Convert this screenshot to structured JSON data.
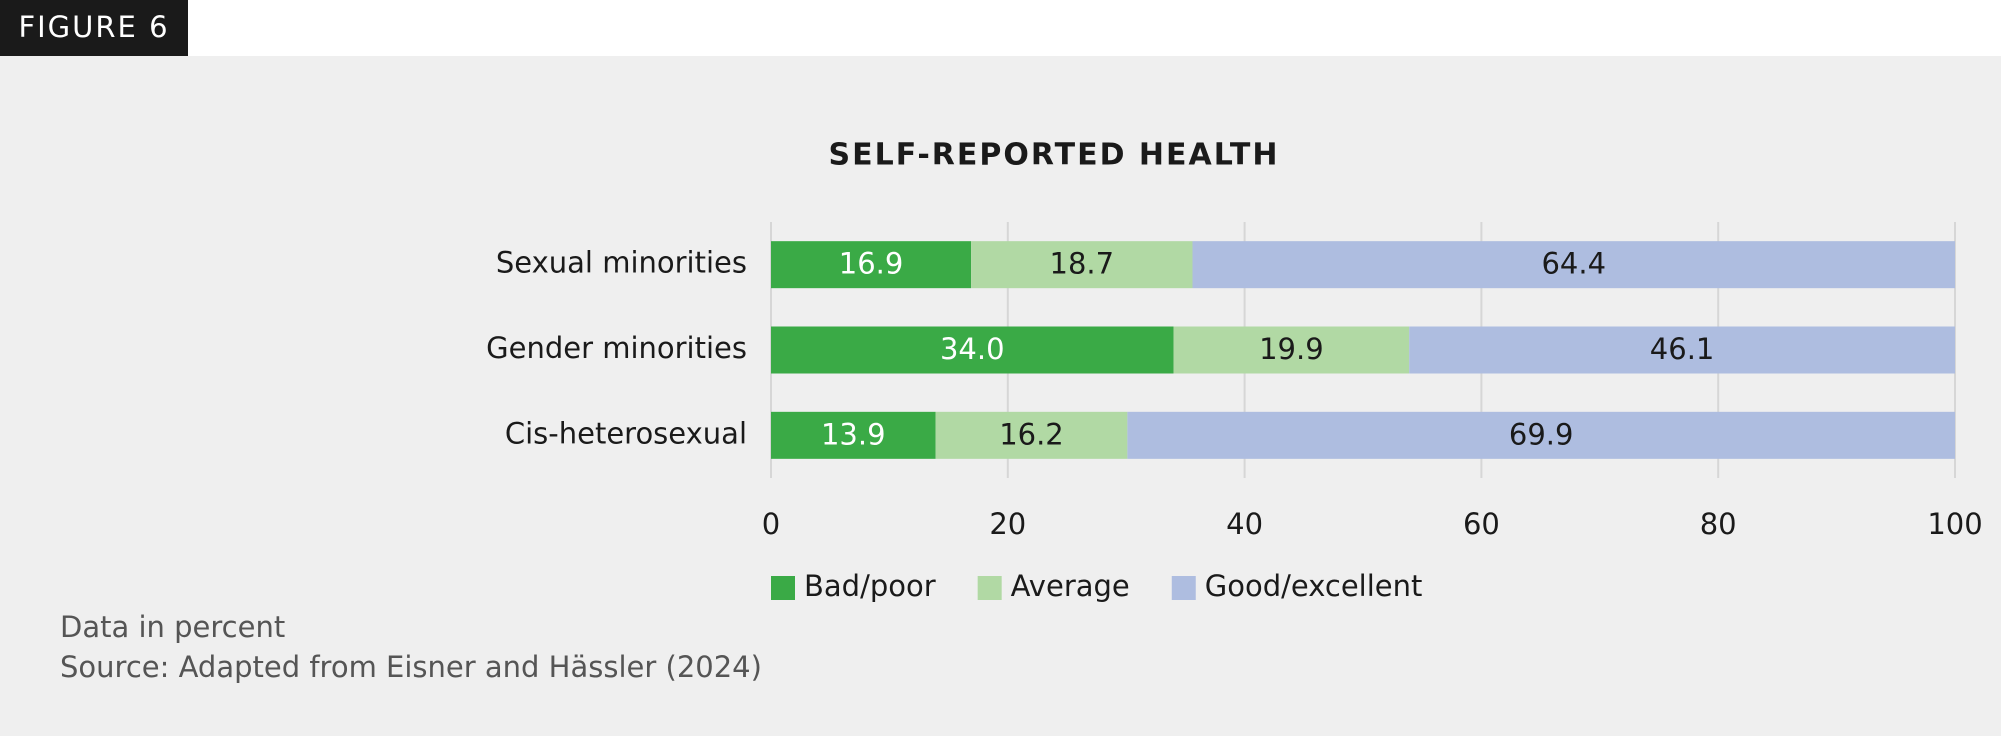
{
  "figure_label": "FIGURE 6",
  "chart_data": {
    "type": "stacked_bar_horizontal",
    "title": "SELF-REPORTED HEALTH",
    "categories": [
      "Sexual minorities",
      "Gender minorities",
      "Cis-heterosexual"
    ],
    "series": [
      {
        "name": "Bad/poor",
        "color": "#3aaa46",
        "label_color": "#ffffff",
        "values": [
          16.9,
          34.0,
          13.9
        ],
        "value_labels": [
          "16.9",
          "34.0",
          "13.9"
        ]
      },
      {
        "name": "Average",
        "color": "#b1d9a4",
        "label_color": "#1a1a1a",
        "values": [
          18.7,
          19.9,
          16.2
        ],
        "value_labels": [
          "18.7",
          "19.9",
          "16.2"
        ]
      },
      {
        "name": "Good/excellent",
        "color": "#aebde0",
        "label_color": "#1a1a1a",
        "values": [
          64.4,
          46.1,
          69.9
        ],
        "value_labels": [
          "64.4",
          "46.1",
          "69.9"
        ]
      }
    ],
    "xlim": [
      0,
      100
    ],
    "xticks": [
      0,
      20,
      40,
      60,
      80,
      100
    ],
    "grid": true,
    "legend": "bottom",
    "notes": [
      "Data in percent",
      "Source: Adapted from Eisner and Hässler (2024)"
    ]
  }
}
